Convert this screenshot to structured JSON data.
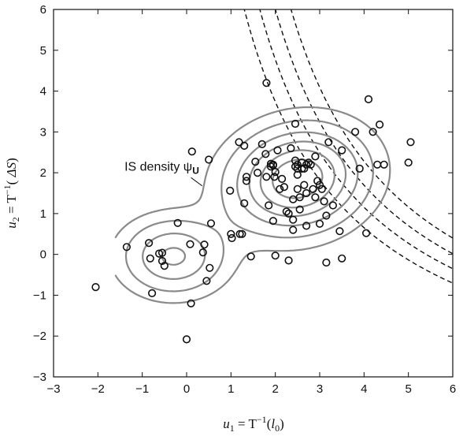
{
  "chart_data": {
    "type": "scatter",
    "xlim": [
      -3,
      6
    ],
    "ylim": [
      -3,
      6
    ],
    "x_ticks": [
      "−3",
      "−2",
      "−1",
      "0",
      "1",
      "2",
      "3",
      "4",
      "5",
      "6"
    ],
    "y_ticks": [
      "−3",
      "−2",
      "−1",
      "0",
      "1",
      "2",
      "3",
      "4",
      "5",
      "6"
    ],
    "grid": false,
    "xlabel": {
      "var": "u",
      "sub": "1",
      "rest": " = T",
      "sup": "−1",
      "arg_open": "(",
      "arg": "l",
      "arg_sub": "0",
      "arg_close": ")"
    },
    "ylabel": {
      "var": "u",
      "sub": "2",
      "rest": " = T",
      "sup": "−1",
      "arg_open": "( ",
      "arg": "ΔS",
      "arg_close": ")"
    },
    "annotation": {
      "text": "IS density ψ",
      "sub": "U",
      "x": -1.4,
      "y": 2.05,
      "leader_from": [
        0.1,
        1.88
      ],
      "leader_to": [
        0.35,
        1.68
      ]
    },
    "colors": {
      "points": "#111111",
      "contours": "#8a8a8a",
      "limit_curves": "#111111"
    },
    "points": [
      [
        -2.05,
        -0.8
      ],
      [
        -1.35,
        0.18
      ],
      [
        -0.85,
        0.28
      ],
      [
        -0.82,
        -0.1
      ],
      [
        -0.78,
        -0.95
      ],
      [
        -0.62,
        0.02
      ],
      [
        -0.55,
        0.04
      ],
      [
        -0.55,
        -0.16
      ],
      [
        -0.5,
        -0.28
      ],
      [
        -0.2,
        0.77
      ],
      [
        0.0,
        -2.08
      ],
      [
        0.08,
        0.25
      ],
      [
        0.1,
        -1.2
      ],
      [
        0.12,
        2.52
      ],
      [
        0.37,
        0.05
      ],
      [
        0.4,
        0.24
      ],
      [
        0.45,
        -0.65
      ],
      [
        0.5,
        2.32
      ],
      [
        0.52,
        -0.33
      ],
      [
        0.55,
        0.76
      ],
      [
        0.98,
        1.56
      ],
      [
        1.0,
        0.5
      ],
      [
        1.02,
        0.4
      ],
      [
        1.18,
        2.75
      ],
      [
        1.2,
        0.5
      ],
      [
        1.25,
        0.5
      ],
      [
        1.3,
        2.66
      ],
      [
        1.35,
        1.8
      ],
      [
        1.3,
        1.25
      ],
      [
        1.35,
        1.9
      ],
      [
        1.45,
        -0.05
      ],
      [
        1.55,
        2.27
      ],
      [
        1.6,
        2.0
      ],
      [
        1.7,
        2.7
      ],
      [
        1.78,
        2.46
      ],
      [
        1.8,
        1.9
      ],
      [
        1.85,
        1.2
      ],
      [
        1.9,
        2.22
      ],
      [
        1.9,
        2.15
      ],
      [
        1.95,
        2.18
      ],
      [
        1.95,
        2.2
      ],
      [
        1.95,
        0.82
      ],
      [
        1.98,
        1.9
      ],
      [
        2.0,
        2.02
      ],
      [
        2.0,
        -0.03
      ],
      [
        2.05,
        2.55
      ],
      [
        2.1,
        1.6
      ],
      [
        2.15,
        1.85
      ],
      [
        2.2,
        1.65
      ],
      [
        2.25,
        1.05
      ],
      [
        2.3,
        1.0
      ],
      [
        2.3,
        -0.15
      ],
      [
        2.35,
        2.6
      ],
      [
        2.4,
        1.35
      ],
      [
        2.4,
        0.85
      ],
      [
        2.4,
        0.6
      ],
      [
        2.45,
        3.2
      ],
      [
        2.45,
        2.3
      ],
      [
        2.45,
        2.15
      ],
      [
        2.5,
        2.2
      ],
      [
        2.5,
        2.1
      ],
      [
        2.5,
        1.95
      ],
      [
        2.5,
        1.6
      ],
      [
        2.55,
        1.4
      ],
      [
        2.55,
        1.1
      ],
      [
        2.6,
        2.25
      ],
      [
        2.6,
        2.1
      ],
      [
        2.65,
        1.7
      ],
      [
        2.65,
        2.1
      ],
      [
        2.7,
        1.5
      ],
      [
        2.7,
        0.7
      ],
      [
        2.7,
        2.2
      ],
      [
        2.75,
        2.25
      ],
      [
        2.8,
        2.2
      ],
      [
        2.85,
        1.6
      ],
      [
        2.9,
        2.4
      ],
      [
        2.9,
        1.4
      ],
      [
        2.95,
        1.8
      ],
      [
        3.0,
        0.75
      ],
      [
        3.0,
        1.7
      ],
      [
        3.05,
        1.6
      ],
      [
        3.1,
        1.3
      ],
      [
        3.15,
        0.95
      ],
      [
        3.15,
        -0.2
      ],
      [
        3.2,
        2.75
      ],
      [
        3.3,
        1.2
      ],
      [
        3.45,
        0.57
      ],
      [
        3.5,
        -0.1
      ],
      [
        3.5,
        2.55
      ],
      [
        3.8,
        3.0
      ],
      [
        3.9,
        2.1
      ],
      [
        4.05,
        0.52
      ],
      [
        4.1,
        3.8
      ],
      [
        4.2,
        3.0
      ],
      [
        4.3,
        2.2
      ],
      [
        4.35,
        3.18
      ],
      [
        4.45,
        2.2
      ],
      [
        5.0,
        2.25
      ],
      [
        5.05,
        2.75
      ],
      [
        1.8,
        4.2
      ]
    ]
  }
}
